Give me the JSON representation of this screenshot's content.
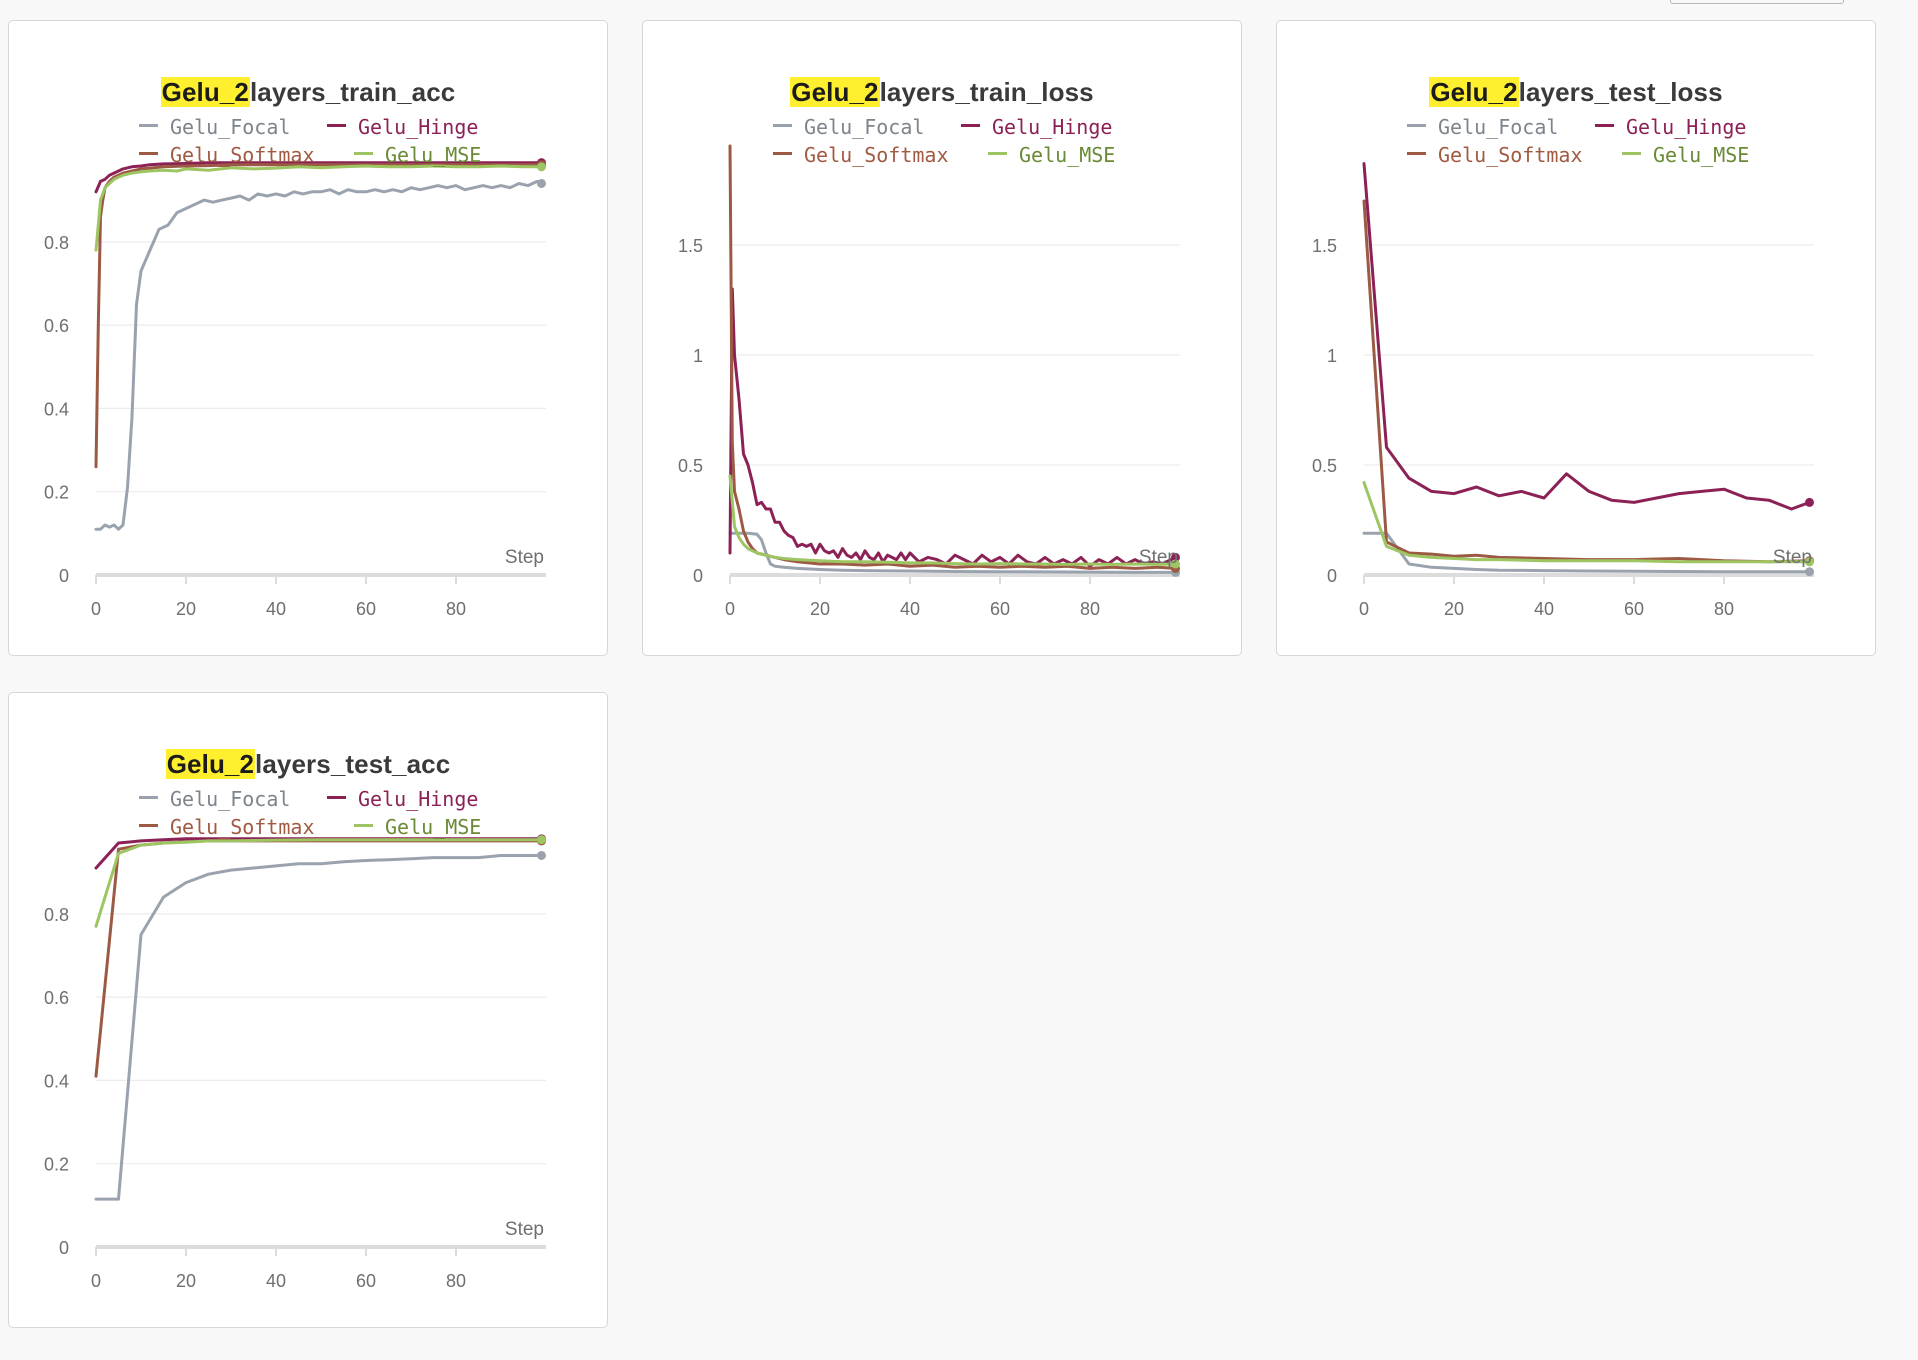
{
  "title_highlight": "Gelu_2",
  "colors": {
    "Gelu_Focal": "#9aa3ad",
    "Gelu_Hinge": "#8c2156",
    "Gelu_Softmax": "#9c5a44",
    "Gelu_MSE": "#9dc561"
  },
  "legend_text_colors": {
    "Gelu_Focal": "#7d848c",
    "Gelu_Hinge": "#8c2156",
    "Gelu_Softmax": "#a05b42",
    "Gelu_MSE": "#6a8a35"
  },
  "legend_labels": [
    "Gelu_Focal",
    "Gelu_Hinge",
    "Gelu_Softmax",
    "Gelu_MSE"
  ],
  "panels": [
    {
      "title_rest": "layers_train_acc",
      "xlabel": "Step"
    },
    {
      "title_rest": "layers_train_loss",
      "xlabel": "Step"
    },
    {
      "title_rest": "layers_test_loss",
      "xlabel": "Step"
    },
    {
      "title_rest": "layers_test_acc",
      "xlabel": "Step"
    }
  ],
  "chart_data": [
    {
      "type": "line",
      "title": "Gelu_2layers_train_acc",
      "xlabel": "Step",
      "ylabel": "",
      "xlim": [
        0,
        100
      ],
      "ylim": [
        0,
        1.03
      ],
      "xticks": [
        0,
        20,
        40,
        60,
        80
      ],
      "yticks": [
        0,
        0.2,
        0.4,
        0.6,
        0.8
      ],
      "ytick_labels": [
        "0",
        "0.2",
        "0.4",
        "0.6",
        "0.8"
      ],
      "legend": "top",
      "grid": true,
      "series": [
        {
          "name": "Gelu_Focal",
          "x": [
            0,
            1,
            2,
            3,
            4,
            5,
            6,
            7,
            8,
            9,
            10,
            12,
            14,
            16,
            18,
            20,
            22,
            24,
            26,
            28,
            30,
            32,
            34,
            36,
            38,
            40,
            42,
            44,
            46,
            48,
            50,
            52,
            54,
            56,
            58,
            60,
            62,
            64,
            66,
            68,
            70,
            72,
            74,
            76,
            78,
            80,
            82,
            84,
            86,
            88,
            90,
            92,
            94,
            96,
            98,
            99
          ],
          "y": [
            0.11,
            0.11,
            0.12,
            0.115,
            0.12,
            0.11,
            0.12,
            0.21,
            0.38,
            0.65,
            0.73,
            0.78,
            0.83,
            0.84,
            0.87,
            0.88,
            0.89,
            0.9,
            0.895,
            0.9,
            0.905,
            0.91,
            0.9,
            0.915,
            0.91,
            0.915,
            0.91,
            0.92,
            0.915,
            0.92,
            0.92,
            0.925,
            0.915,
            0.925,
            0.92,
            0.92,
            0.925,
            0.92,
            0.925,
            0.92,
            0.93,
            0.925,
            0.93,
            0.935,
            0.93,
            0.935,
            0.925,
            0.93,
            0.935,
            0.93,
            0.935,
            0.93,
            0.94,
            0.935,
            0.945,
            0.94
          ]
        },
        {
          "name": "Gelu_Hinge",
          "x": [
            0,
            1,
            2,
            3,
            4,
            5,
            6,
            8,
            10,
            12,
            15,
            20,
            25,
            30,
            40,
            50,
            60,
            70,
            80,
            90,
            99
          ],
          "y": [
            0.92,
            0.945,
            0.95,
            0.96,
            0.965,
            0.97,
            0.975,
            0.98,
            0.982,
            0.985,
            0.987,
            0.988,
            0.99,
            0.99,
            0.99,
            0.99,
            0.99,
            0.99,
            0.99,
            0.99,
            0.99
          ]
        },
        {
          "name": "Gelu_Softmax",
          "x": [
            0,
            0.5,
            1,
            1.5,
            2,
            3,
            4,
            5,
            6,
            8,
            10,
            12,
            15,
            20,
            25,
            30,
            40,
            50,
            60,
            70,
            80,
            90,
            99
          ],
          "y": [
            0.26,
            0.6,
            0.86,
            0.9,
            0.93,
            0.945,
            0.955,
            0.96,
            0.965,
            0.97,
            0.975,
            0.977,
            0.98,
            0.982,
            0.983,
            0.985,
            0.985,
            0.985,
            0.985,
            0.985,
            0.985,
            0.985,
            0.985
          ]
        },
        {
          "name": "Gelu_MSE",
          "x": [
            0,
            1,
            2,
            3,
            4,
            5,
            6,
            8,
            10,
            12,
            15,
            18,
            20,
            25,
            30,
            35,
            40,
            45,
            50,
            55,
            60,
            65,
            70,
            75,
            80,
            85,
            90,
            95,
            99
          ],
          "y": [
            0.78,
            0.9,
            0.93,
            0.94,
            0.95,
            0.955,
            0.96,
            0.965,
            0.968,
            0.97,
            0.972,
            0.97,
            0.975,
            0.972,
            0.978,
            0.975,
            0.977,
            0.98,
            0.978,
            0.98,
            0.982,
            0.98,
            0.98,
            0.982,
            0.98,
            0.98,
            0.982,
            0.98,
            0.98
          ]
        }
      ]
    },
    {
      "type": "line",
      "title": "Gelu_2layers_train_loss",
      "xlabel": "Step",
      "ylabel": "",
      "xlim": [
        0,
        100
      ],
      "ylim": [
        0,
        1.95
      ],
      "xticks": [
        0,
        20,
        40,
        60,
        80
      ],
      "yticks": [
        0,
        0.5,
        1,
        1.5
      ],
      "ytick_labels": [
        "0",
        "0.5",
        "1",
        "1.5"
      ],
      "legend": "top",
      "grid": true,
      "series": [
        {
          "name": "Gelu_Focal",
          "x": [
            0,
            2,
            4,
            6,
            7,
            8,
            9,
            10,
            12,
            15,
            20,
            25,
            30,
            40,
            50,
            60,
            70,
            80,
            90,
            99
          ],
          "y": [
            0.19,
            0.19,
            0.19,
            0.185,
            0.16,
            0.1,
            0.05,
            0.04,
            0.035,
            0.03,
            0.025,
            0.022,
            0.02,
            0.018,
            0.016,
            0.015,
            0.014,
            0.013,
            0.012,
            0.012
          ]
        },
        {
          "name": "Gelu_Hinge",
          "x": [
            0,
            0.5,
            1,
            2,
            3,
            4,
            5,
            6,
            7,
            8,
            9,
            10,
            11,
            12,
            13,
            14,
            15,
            16,
            17,
            18,
            19,
            20,
            21,
            22,
            23,
            24,
            25,
            26,
            27,
            28,
            29,
            30,
            31,
            32,
            33,
            34,
            35,
            36,
            37,
            38,
            39,
            40,
            42,
            44,
            46,
            48,
            50,
            52,
            54,
            56,
            58,
            60,
            62,
            64,
            66,
            68,
            70,
            72,
            74,
            76,
            78,
            80,
            82,
            84,
            86,
            88,
            90,
            92,
            94,
            96,
            98,
            99
          ],
          "y": [
            0.1,
            1.3,
            1.0,
            0.8,
            0.55,
            0.5,
            0.42,
            0.32,
            0.33,
            0.3,
            0.3,
            0.24,
            0.24,
            0.2,
            0.18,
            0.17,
            0.13,
            0.14,
            0.13,
            0.14,
            0.1,
            0.14,
            0.11,
            0.1,
            0.11,
            0.08,
            0.12,
            0.09,
            0.08,
            0.1,
            0.07,
            0.11,
            0.08,
            0.07,
            0.1,
            0.06,
            0.09,
            0.08,
            0.07,
            0.1,
            0.07,
            0.1,
            0.06,
            0.08,
            0.07,
            0.05,
            0.09,
            0.07,
            0.05,
            0.09,
            0.06,
            0.08,
            0.05,
            0.09,
            0.06,
            0.05,
            0.08,
            0.05,
            0.07,
            0.05,
            0.08,
            0.04,
            0.07,
            0.05,
            0.08,
            0.05,
            0.07,
            0.05,
            0.06,
            0.05,
            0.07,
            0.08
          ]
        },
        {
          "name": "Gelu_Softmax",
          "x": [
            0,
            0.5,
            1,
            2,
            3,
            4,
            5,
            6,
            8,
            10,
            12,
            15,
            20,
            25,
            30,
            35,
            40,
            45,
            50,
            55,
            60,
            65,
            70,
            75,
            80,
            85,
            90,
            95,
            99
          ],
          "y": [
            1.95,
            0.6,
            0.38,
            0.3,
            0.2,
            0.15,
            0.12,
            0.1,
            0.09,
            0.08,
            0.07,
            0.06,
            0.05,
            0.05,
            0.045,
            0.05,
            0.04,
            0.045,
            0.035,
            0.04,
            0.035,
            0.04,
            0.035,
            0.04,
            0.03,
            0.035,
            0.03,
            0.035,
            0.03
          ]
        },
        {
          "name": "Gelu_MSE",
          "x": [
            0,
            1,
            2,
            3,
            4,
            5,
            6,
            8,
            10,
            12,
            15,
            20,
            25,
            30,
            35,
            40,
            45,
            50,
            55,
            60,
            65,
            70,
            75,
            80,
            85,
            90,
            95,
            99
          ],
          "y": [
            0.45,
            0.22,
            0.17,
            0.14,
            0.12,
            0.11,
            0.1,
            0.09,
            0.08,
            0.075,
            0.07,
            0.065,
            0.06,
            0.06,
            0.058,
            0.055,
            0.055,
            0.052,
            0.05,
            0.052,
            0.05,
            0.05,
            0.048,
            0.05,
            0.048,
            0.05,
            0.048,
            0.05
          ]
        }
      ]
    },
    {
      "type": "line",
      "title": "Gelu_2layers_test_loss",
      "xlabel": "Step",
      "ylabel": "",
      "xlim": [
        0,
        100
      ],
      "ylim": [
        0,
        1.95
      ],
      "xticks": [
        0,
        20,
        40,
        60,
        80
      ],
      "yticks": [
        0,
        0.5,
        1,
        1.5
      ],
      "ytick_labels": [
        "0",
        "0.5",
        "1",
        "1.5"
      ],
      "legend": "top",
      "grid": true,
      "series": [
        {
          "name": "Gelu_Focal",
          "x": [
            0,
            5,
            10,
            15,
            20,
            25,
            30,
            40,
            50,
            60,
            70,
            80,
            90,
            99
          ],
          "y": [
            0.19,
            0.19,
            0.05,
            0.035,
            0.03,
            0.025,
            0.022,
            0.02,
            0.018,
            0.017,
            0.016,
            0.015,
            0.015,
            0.015
          ]
        },
        {
          "name": "Gelu_Hinge",
          "x": [
            0,
            5,
            10,
            15,
            20,
            25,
            30,
            35,
            40,
            45,
            50,
            55,
            60,
            65,
            70,
            75,
            80,
            85,
            90,
            95,
            99
          ],
          "y": [
            1.87,
            0.58,
            0.44,
            0.38,
            0.37,
            0.4,
            0.36,
            0.38,
            0.35,
            0.46,
            0.38,
            0.34,
            0.33,
            0.35,
            0.37,
            0.38,
            0.39,
            0.35,
            0.34,
            0.3,
            0.33
          ]
        },
        {
          "name": "Gelu_Softmax",
          "x": [
            0,
            5,
            10,
            15,
            20,
            25,
            30,
            40,
            50,
            60,
            70,
            80,
            90,
            99
          ],
          "y": [
            1.7,
            0.15,
            0.1,
            0.095,
            0.085,
            0.09,
            0.08,
            0.075,
            0.07,
            0.07,
            0.075,
            0.065,
            0.06,
            0.065
          ]
        },
        {
          "name": "Gelu_MSE",
          "x": [
            0,
            5,
            10,
            15,
            20,
            25,
            30,
            40,
            50,
            60,
            70,
            80,
            90,
            99
          ],
          "y": [
            0.42,
            0.13,
            0.09,
            0.08,
            0.075,
            0.07,
            0.07,
            0.065,
            0.065,
            0.065,
            0.06,
            0.06,
            0.06,
            0.06
          ]
        }
      ]
    },
    {
      "type": "line",
      "title": "Gelu_2layers_test_acc",
      "xlabel": "Step",
      "ylabel": "",
      "xlim": [
        0,
        100
      ],
      "ylim": [
        0,
        1.03
      ],
      "xticks": [
        0,
        20,
        40,
        60,
        80
      ],
      "yticks": [
        0,
        0.2,
        0.4,
        0.6,
        0.8
      ],
      "ytick_labels": [
        "0",
        "0.2",
        "0.4",
        "0.6",
        "0.8"
      ],
      "legend": "top",
      "grid": true,
      "series": [
        {
          "name": "Gelu_Focal",
          "x": [
            0,
            5,
            10,
            15,
            20,
            25,
            30,
            35,
            40,
            45,
            50,
            55,
            60,
            65,
            70,
            75,
            80,
            85,
            90,
            95,
            99
          ],
          "y": [
            0.115,
            0.115,
            0.75,
            0.84,
            0.875,
            0.895,
            0.905,
            0.91,
            0.915,
            0.92,
            0.92,
            0.925,
            0.928,
            0.93,
            0.932,
            0.935,
            0.935,
            0.935,
            0.94,
            0.94,
            0.94
          ]
        },
        {
          "name": "Gelu_Hinge",
          "x": [
            0,
            5,
            10,
            15,
            20,
            25,
            30,
            40,
            50,
            60,
            70,
            80,
            90,
            99
          ],
          "y": [
            0.91,
            0.97,
            0.975,
            0.978,
            0.98,
            0.98,
            0.98,
            0.98,
            0.98,
            0.98,
            0.98,
            0.98,
            0.98,
            0.98
          ]
        },
        {
          "name": "Gelu_Softmax",
          "x": [
            0,
            5,
            10,
            15,
            20,
            25,
            30,
            40,
            50,
            60,
            70,
            80,
            90,
            99
          ],
          "y": [
            0.41,
            0.955,
            0.965,
            0.97,
            0.973,
            0.975,
            0.975,
            0.975,
            0.975,
            0.975,
            0.975,
            0.975,
            0.975,
            0.975
          ]
        },
        {
          "name": "Gelu_MSE",
          "x": [
            0,
            5,
            10,
            15,
            20,
            25,
            30,
            40,
            50,
            60,
            70,
            80,
            90,
            99
          ],
          "y": [
            0.77,
            0.945,
            0.965,
            0.97,
            0.972,
            0.975,
            0.975,
            0.977,
            0.978,
            0.978,
            0.978,
            0.978,
            0.978,
            0.978
          ]
        }
      ]
    }
  ]
}
